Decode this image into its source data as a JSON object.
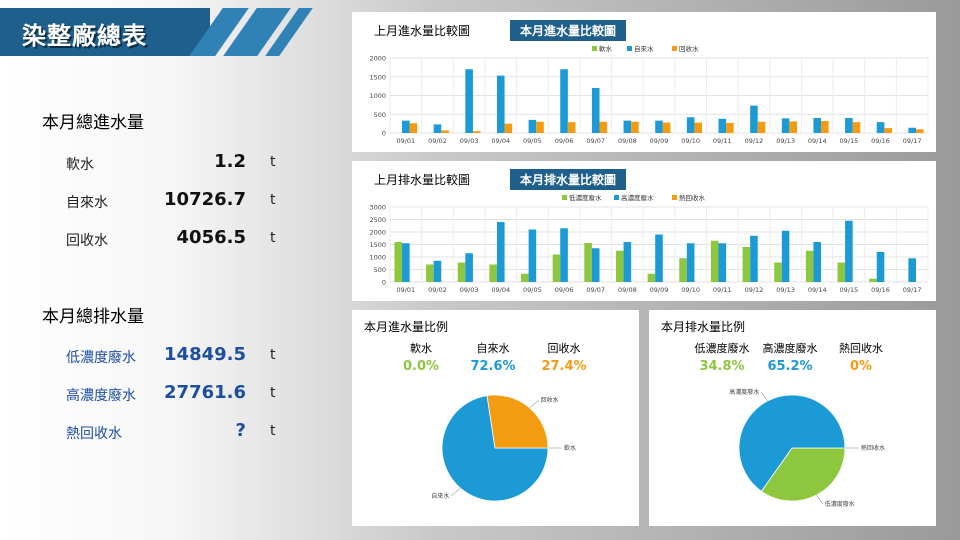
{
  "title": "染整廠總表",
  "colors": {
    "soft": "#8dc63f",
    "tap": "#1b9ad6",
    "recycled": "#f39c12",
    "banner": "#1f5f8c"
  },
  "inflow": {
    "heading": "本月總進水量",
    "rows": [
      {
        "label": "軟水",
        "value": "1.2",
        "unit": "t"
      },
      {
        "label": "自來水",
        "value": "10726.7",
        "unit": "t"
      },
      {
        "label": "回收水",
        "value": "4056.5",
        "unit": "t"
      }
    ]
  },
  "outflow": {
    "heading": "本月總排水量",
    "rows": [
      {
        "label": "低濃度廢水",
        "value": "14849.5",
        "unit": "t"
      },
      {
        "label": "高濃度廢水",
        "value": "27761.6",
        "unit": "t"
      },
      {
        "label": "熱回收水",
        "value": "?",
        "unit": "t"
      }
    ]
  },
  "chart1": {
    "title": "上月進水量比較圖",
    "tag": "本月進水量比較圖",
    "chart_data": {
      "type": "bar",
      "categories": [
        "09/01",
        "09/02",
        "09/03",
        "09/04",
        "09/05",
        "09/06",
        "09/07",
        "09/08",
        "09/09",
        "09/10",
        "09/11",
        "09/12",
        "09/13",
        "09/14",
        "09/15",
        "09/16",
        "09/17"
      ],
      "series": [
        {
          "name": "軟水",
          "values": [
            0,
            0,
            0,
            0,
            0,
            0,
            0,
            0,
            0,
            0,
            0,
            0,
            0,
            0,
            0,
            0,
            0
          ]
        },
        {
          "name": "自來水",
          "values": [
            330,
            230,
            1700,
            1530,
            350,
            1700,
            1200,
            330,
            330,
            420,
            380,
            730,
            390,
            400,
            400,
            290,
            140
          ]
        },
        {
          "name": "回收水",
          "values": [
            260,
            70,
            50,
            250,
            300,
            290,
            300,
            300,
            280,
            280,
            270,
            300,
            310,
            320,
            290,
            130,
            100
          ]
        }
      ],
      "ylim": [
        0,
        2000
      ],
      "yticks": [
        0,
        500,
        1000,
        1500,
        2000
      ],
      "legend": "top"
    }
  },
  "chart2": {
    "title": "上月排水量比較圖",
    "tag": "本月排水量比較圖",
    "chart_data": {
      "type": "bar",
      "categories": [
        "09/01",
        "09/02",
        "09/03",
        "09/04",
        "09/05",
        "09/06",
        "09/07",
        "09/08",
        "09/09",
        "09/10",
        "09/11",
        "09/12",
        "09/13",
        "09/14",
        "09/15",
        "09/16",
        "09/17"
      ],
      "series": [
        {
          "name": "低濃度廢水",
          "values": [
            1600,
            700,
            780,
            700,
            330,
            1100,
            1560,
            1250,
            330,
            950,
            1650,
            1400,
            780,
            1250,
            780,
            130,
            0
          ]
        },
        {
          "name": "高濃度廢水",
          "values": [
            1550,
            850,
            1150,
            2400,
            2100,
            2150,
            1350,
            1600,
            1900,
            1550,
            1550,
            1850,
            2050,
            1600,
            2450,
            1200,
            950
          ]
        },
        {
          "name": "熱回收水",
          "values": [
            0,
            0,
            0,
            0,
            0,
            0,
            0,
            0,
            0,
            0,
            0,
            0,
            0,
            0,
            0,
            0,
            0
          ]
        }
      ],
      "ylim": [
        0,
        3000
      ],
      "yticks": [
        0,
        500,
        1000,
        1500,
        2000,
        2500,
        3000
      ],
      "legend": "top"
    }
  },
  "pie1": {
    "title": "本月進水量比例",
    "stats": [
      {
        "name": "軟水",
        "pct": "0.0%",
        "color": "#8dc63f"
      },
      {
        "name": "自來水",
        "pct": "72.6%",
        "color": "#1b9ad6"
      },
      {
        "name": "回收水",
        "pct": "27.4%",
        "color": "#f39c12"
      }
    ],
    "chart_data": {
      "type": "pie",
      "labels": [
        "軟水",
        "自來水",
        "回收水"
      ],
      "values": [
        0.0,
        72.6,
        27.4
      ]
    }
  },
  "pie2": {
    "title": "本月排水量比例",
    "stats": [
      {
        "name": "低濃度廢水",
        "pct": "34.8%",
        "color": "#8dc63f"
      },
      {
        "name": "高濃度廢水",
        "pct": "65.2%",
        "color": "#1b9ad6"
      },
      {
        "name": "熱回收水",
        "pct": "0%",
        "color": "#f39c12"
      }
    ],
    "chart_data": {
      "type": "pie",
      "labels": [
        "低濃度廢水",
        "高濃度廢水",
        "熱回收水"
      ],
      "values": [
        34.8,
        65.2,
        0
      ]
    }
  }
}
